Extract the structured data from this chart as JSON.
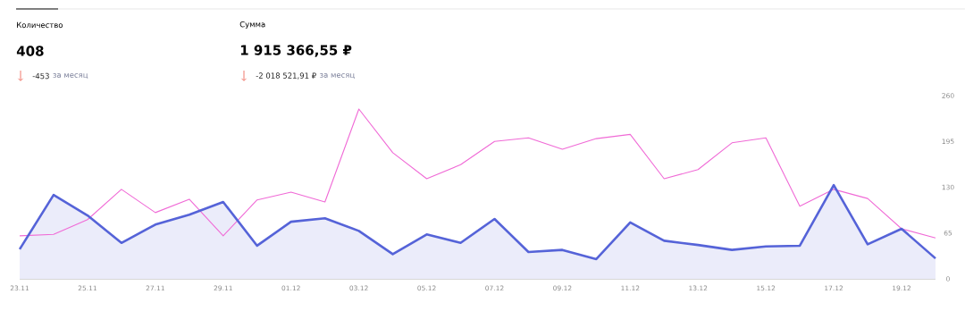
{
  "chart_data": {
    "type": "line",
    "annotations": [
      "Количество",
      "408",
      "-453",
      "за месяц",
      "Сумма",
      "1 915 366,55 ₽",
      "-2 018 521,91 ₽",
      "за месяц"
    ],
    "categories": [
      "23.11",
      null,
      "25.11",
      null,
      "27.11",
      null,
      "29.11",
      null,
      "01.12",
      null,
      "03.12",
      null,
      "05.12",
      null,
      "07.12",
      null,
      "09.12",
      null,
      "11.12",
      null,
      "13.12",
      null,
      "15.12",
      null,
      "17.12",
      null,
      "19.12",
      null
    ],
    "series": [
      {
        "type": "area",
        "color": "#5563d8",
        "values": [
          42,
          119,
          90,
          51,
          77,
          91,
          109,
          47,
          81,
          86,
          68,
          35,
          63,
          51,
          85,
          38,
          41,
          28,
          80,
          54,
          48,
          41,
          46,
          47,
          133,
          49,
          71,
          29
        ]
      },
      {
        "color": "#f06ad6",
        "values": [
          61,
          63,
          84,
          127,
          94,
          113,
          61,
          112,
          123,
          109,
          241,
          179,
          142,
          162,
          195,
          200,
          184,
          199,
          205,
          142,
          155,
          193,
          200,
          103,
          127,
          114,
          71,
          58
        ]
      }
    ],
    "ylim": [
      0,
      260
    ],
    "yticks": [
      0,
      65,
      130,
      195,
      260
    ],
    "grid": false
  }
}
